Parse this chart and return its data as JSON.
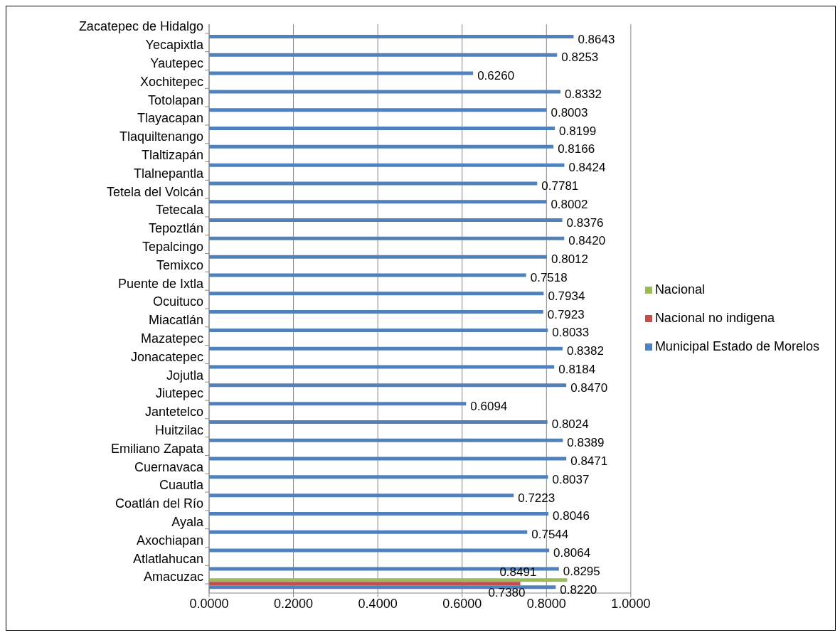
{
  "chart_data": {
    "type": "bar",
    "orientation": "horizontal",
    "categories": [
      "Zacatepec de Hidalgo",
      "Yecapixtla",
      "Yautepec",
      "Xochitepec",
      "Totolapan",
      "Tlayacapan",
      "Tlaquiltenango",
      "Tlaltizapán",
      "Tlalnepantla",
      "Tetela del Volcán",
      "Tetecala",
      "Tepoztlán",
      "Tepalcingo",
      "Temixco",
      "Puente de Ixtla",
      "Ocuituco",
      "Miacatlán",
      "Mazatepec",
      "Jonacatepec",
      "Jojutla",
      "Jiutepec",
      "Jantetelco",
      "Huitzilac",
      "Emiliano Zapata",
      "Cuernavaca",
      "Cuautla",
      "Coatlán del Río",
      "Ayala",
      "Axochiapan",
      "Atlatlahucan",
      "Amacuzac"
    ],
    "series": [
      {
        "name": "Nacional",
        "color": "#9bbb59",
        "values": [
          null,
          null,
          null,
          null,
          null,
          null,
          null,
          null,
          null,
          null,
          null,
          null,
          null,
          null,
          null,
          null,
          null,
          null,
          null,
          null,
          null,
          null,
          null,
          null,
          null,
          null,
          null,
          null,
          null,
          null,
          0.8491
        ],
        "value_labels": [
          null,
          null,
          null,
          null,
          null,
          null,
          null,
          null,
          null,
          null,
          null,
          null,
          null,
          null,
          null,
          null,
          null,
          null,
          null,
          null,
          null,
          null,
          null,
          null,
          null,
          null,
          null,
          null,
          null,
          null,
          "0.8491"
        ]
      },
      {
        "name": "Nacional no indigena",
        "color": "#c0504d",
        "values": [
          null,
          null,
          null,
          null,
          null,
          null,
          null,
          null,
          null,
          null,
          null,
          null,
          null,
          null,
          null,
          null,
          null,
          null,
          null,
          null,
          null,
          null,
          null,
          null,
          null,
          null,
          null,
          null,
          null,
          null,
          0.738
        ],
        "value_labels": [
          null,
          null,
          null,
          null,
          null,
          null,
          null,
          null,
          null,
          null,
          null,
          null,
          null,
          null,
          null,
          null,
          null,
          null,
          null,
          null,
          null,
          null,
          null,
          null,
          null,
          null,
          null,
          null,
          null,
          null,
          "0.7380"
        ]
      },
      {
        "name": "Municipal Estado de Morelos",
        "color": "#4f81bd",
        "values": [
          0.8643,
          0.8253,
          0.626,
          0.8332,
          0.8003,
          0.8199,
          0.8166,
          0.8424,
          0.7781,
          0.8002,
          0.8376,
          0.842,
          0.8012,
          0.7518,
          0.7934,
          0.7923,
          0.8033,
          0.8382,
          0.8184,
          0.847,
          0.6094,
          0.8024,
          0.8389,
          0.8471,
          0.8037,
          0.7223,
          0.8046,
          0.7544,
          0.8064,
          0.8295,
          0.822
        ],
        "value_labels": [
          "0.8643",
          "0.8253",
          "0.6260",
          "0.8332",
          "0.8003",
          "0.8199",
          "0.8166",
          "0.8424",
          "0.7781",
          "0.8002",
          "0.8376",
          "0.8420",
          "0.8012",
          "0.7518",
          "0.7934",
          "0.7923",
          "0.8033",
          "0.8382",
          "0.8184",
          "0.8470",
          "0.6094",
          "0.8024",
          "0.8389",
          "0.8471",
          "0.8037",
          "0.7223",
          "0.8046",
          "0.7544",
          "0.8064",
          "0.8295",
          "0.8220"
        ]
      }
    ],
    "xlim": [
      0,
      1
    ],
    "xticks": [
      {
        "value": 0,
        "label": "0.0000"
      },
      {
        "value": 0.2,
        "label": "0.2000"
      },
      {
        "value": 0.4,
        "label": "0.4000"
      },
      {
        "value": 0.6,
        "label": "0.6000"
      },
      {
        "value": 0.8,
        "label": "0.8000"
      },
      {
        "value": 1,
        "label": "1.0000"
      }
    ],
    "grid": "x",
    "legend": "right"
  }
}
